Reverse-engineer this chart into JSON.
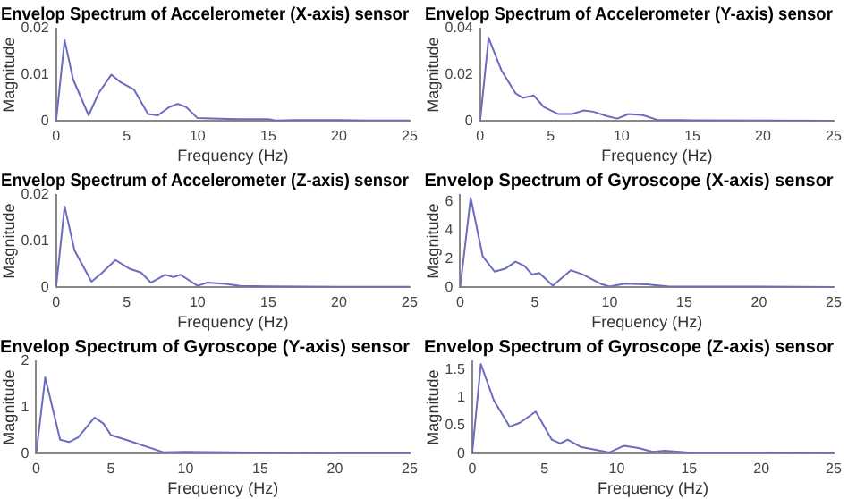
{
  "chart_data": [
    {
      "type": "line",
      "title": "Envelop Spectrum of Accelerometer (X-axis) sensor",
      "xlabel": "Frequency (Hz)",
      "ylabel": "Magnitude",
      "marker": "none",
      "grid": false,
      "legend": false,
      "xlim": [
        0,
        25
      ],
      "xticks": [
        0,
        5,
        10,
        15,
        20,
        25
      ],
      "ylim": [
        0,
        0.02
      ],
      "yticks": [
        0,
        0.01,
        0.02
      ],
      "x": [
        0,
        0.6,
        1.2,
        2.3,
        3,
        3.9,
        4.5,
        5.5,
        6.5,
        7.2,
        8,
        8.6,
        9.2,
        10,
        11,
        13,
        15,
        15.5,
        17,
        20,
        22,
        25
      ],
      "series": [
        {
          "color": "#6b6bc0",
          "values": [
            0,
            0.0175,
            0.009,
            0.0012,
            0.006,
            0.01,
            0.0085,
            0.0068,
            0.0015,
            0.0012,
            0.003,
            0.0037,
            0.003,
            0.0006,
            0.0005,
            0.0004,
            0.0004,
            0.0001,
            0.0002,
            0.0002,
            0.0001,
            0.0001
          ]
        }
      ]
    },
    {
      "type": "line",
      "title": "Envelop Spectrum of Accelerometer (Y-axis) sensor",
      "xlabel": "Frequency (Hz)",
      "ylabel": "Magnitude",
      "marker": "none",
      "grid": false,
      "legend": false,
      "xlim": [
        0,
        25
      ],
      "xticks": [
        0,
        5,
        10,
        15,
        20,
        25
      ],
      "ylim": [
        0,
        0.04
      ],
      "yticks": [
        0,
        0.02,
        0.04
      ],
      "x": [
        0,
        0.6,
        1.5,
        2.5,
        3,
        3.8,
        4.5,
        5.5,
        6.5,
        7.3,
        8,
        9,
        9.7,
        10.5,
        11.5,
        12.5,
        15,
        20,
        25
      ],
      "series": [
        {
          "color": "#6b6bc0",
          "values": [
            0,
            0.036,
            0.022,
            0.012,
            0.01,
            0.011,
            0.006,
            0.003,
            0.003,
            0.0045,
            0.004,
            0.002,
            0.001,
            0.003,
            0.0025,
            0.0005,
            0.0003,
            0.0002,
            0.0001
          ]
        }
      ]
    },
    {
      "type": "line",
      "title": "Envelop Spectrum of Accelerometer (Z-axis) sensor",
      "xlabel": "Frequency (Hz)",
      "ylabel": "Magnitude",
      "marker": "none",
      "grid": false,
      "legend": false,
      "xlim": [
        0,
        25
      ],
      "xticks": [
        0,
        5,
        10,
        15,
        20,
        25
      ],
      "ylim": [
        0,
        0.02
      ],
      "yticks": [
        0,
        0.01,
        0.02
      ],
      "x": [
        0,
        0.6,
        1.3,
        2.5,
        3.2,
        4.2,
        5.2,
        6,
        6.7,
        7.7,
        8.3,
        8.8,
        10,
        10.7,
        12,
        13,
        15,
        20,
        25
      ],
      "series": [
        {
          "color": "#6b6bc0",
          "values": [
            0,
            0.0175,
            0.008,
            0.0012,
            0.003,
            0.0059,
            0.004,
            0.0032,
            0.001,
            0.0027,
            0.0022,
            0.0027,
            0.0003,
            0.001,
            0.0007,
            0.0003,
            0.0002,
            0.0001,
            0.0001
          ]
        }
      ]
    },
    {
      "type": "line",
      "title": "Envelop Spectrum of Gyroscope (X-axis) sensor",
      "xlabel": "Frequency (Hz)",
      "ylabel": "Magnitude",
      "marker": "none",
      "grid": false,
      "legend": false,
      "xlim": [
        0,
        25
      ],
      "xticks": [
        0,
        5,
        10,
        15,
        20,
        25
      ],
      "ylim": [
        0,
        6.5
      ],
      "yticks": [
        0,
        2,
        4,
        6
      ],
      "x": [
        0,
        0.7,
        1.5,
        2.3,
        3,
        3.7,
        4.3,
        4.8,
        5.3,
        6.2,
        7.4,
        8.2,
        9.5,
        10,
        11,
        12.5,
        14,
        20,
        25
      ],
      "series": [
        {
          "color": "#6b6bc0",
          "values": [
            0,
            6.3,
            2.2,
            1.1,
            1.3,
            1.8,
            1.5,
            0.9,
            1,
            0.1,
            1.2,
            0.9,
            0.2,
            0.05,
            0.25,
            0.2,
            0.05,
            0.05,
            0.02
          ]
        }
      ]
    },
    {
      "type": "line",
      "title": "Envelop Spectrum of Gyroscope (Y-axis) sensor",
      "xlabel": "Frequency (Hz)",
      "ylabel": "Magnitude",
      "marker": "none",
      "grid": false,
      "legend": false,
      "xlim": [
        0,
        25
      ],
      "xticks": [
        0,
        5,
        10,
        15,
        20,
        25
      ],
      "ylim": [
        0,
        2
      ],
      "yticks": [
        0,
        1,
        2
      ],
      "x": [
        0,
        0.6,
        1.6,
        2.2,
        2.8,
        3.9,
        4.5,
        5,
        6,
        8.5,
        10,
        15,
        20,
        25
      ],
      "series": [
        {
          "color": "#6b6bc0",
          "values": [
            0,
            1.65,
            0.3,
            0.25,
            0.35,
            0.78,
            0.65,
            0.4,
            0.3,
            0.03,
            0.04,
            0.02,
            0.01,
            0.01
          ]
        }
      ]
    },
    {
      "type": "line",
      "title": "Envelop Spectrum of Gyroscope (Z-axis) sensor",
      "xlabel": "Frequency (Hz)",
      "ylabel": "Magnitude",
      "marker": "none",
      "grid": false,
      "legend": false,
      "xlim": [
        0,
        25
      ],
      "xticks": [
        0,
        5,
        10,
        15,
        20,
        25
      ],
      "ylim": [
        0,
        1.65
      ],
      "yticks": [
        0,
        0.5,
        1,
        1.5
      ],
      "x": [
        0,
        0.6,
        1.5,
        2.6,
        3.3,
        4.4,
        5.5,
        6.1,
        6.6,
        7.5,
        9.5,
        10.5,
        11.5,
        12.5,
        13.3,
        15,
        20,
        25
      ],
      "series": [
        {
          "color": "#6b6bc0",
          "values": [
            0,
            1.6,
            0.95,
            0.48,
            0.55,
            0.75,
            0.25,
            0.18,
            0.25,
            0.12,
            0.02,
            0.14,
            0.1,
            0.03,
            0.05,
            0.02,
            0.02,
            0.01
          ]
        }
      ]
    }
  ]
}
